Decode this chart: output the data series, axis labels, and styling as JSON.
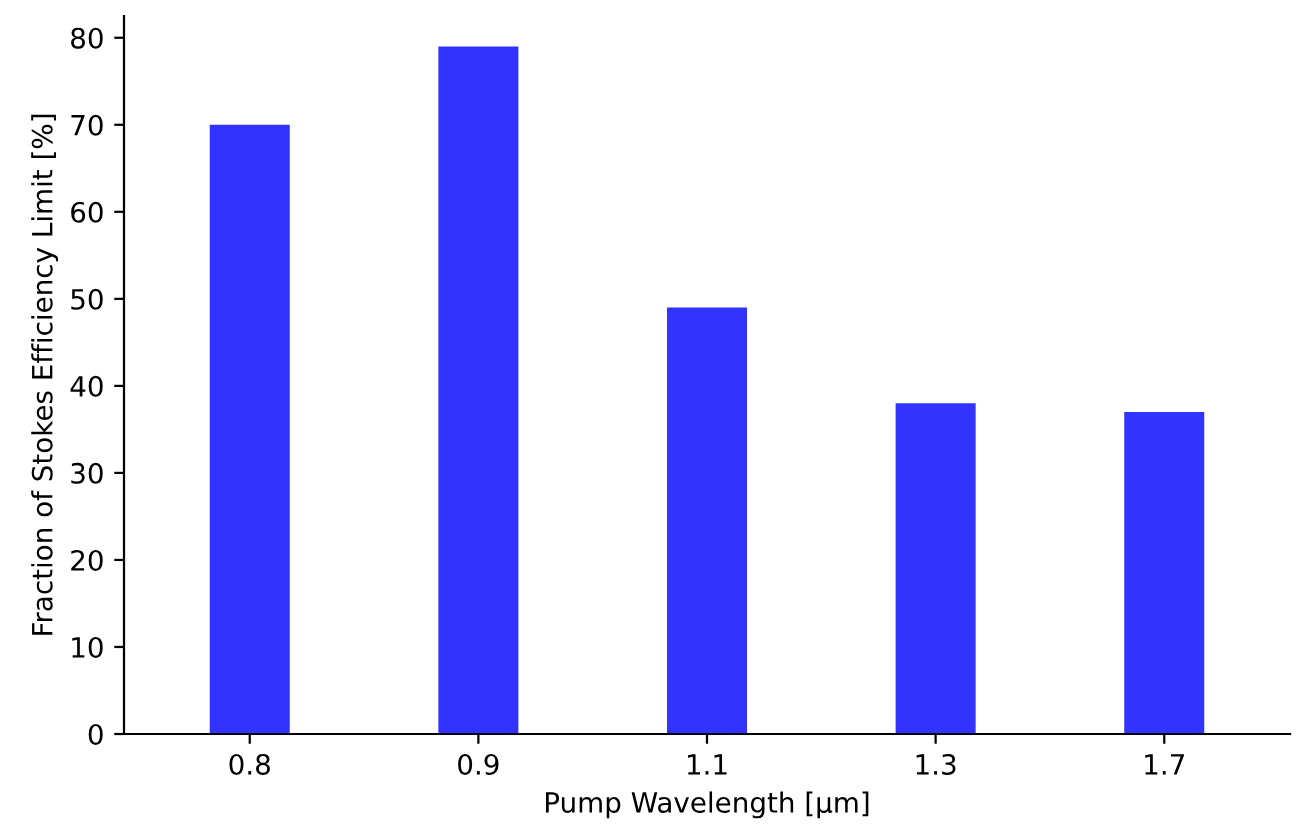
{
  "chart_data": {
    "type": "bar",
    "xlabel": "Pump Wavelength [µm]",
    "ylabel": "Fraction of Stokes Efficiency Limit [%]",
    "categories": [
      "0.8",
      "0.9",
      "1.1",
      "1.3",
      "1.7"
    ],
    "values": [
      70,
      79,
      49,
      38,
      37
    ],
    "color": "#3333ff",
    "ylim": [
      0,
      82.5
    ],
    "yticks": [
      0,
      10,
      20,
      30,
      40,
      50,
      60,
      70,
      80
    ],
    "grid": false,
    "legend": false
  }
}
